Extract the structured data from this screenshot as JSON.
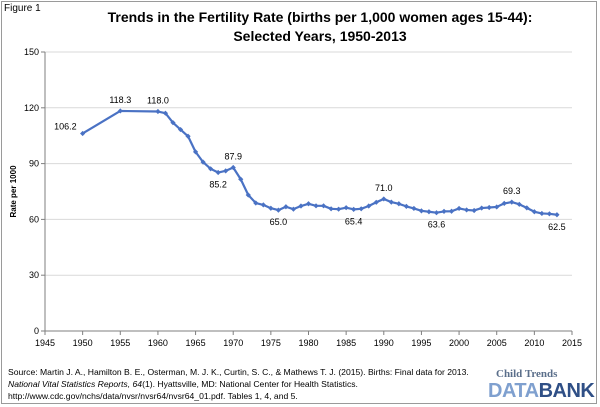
{
  "figure_label": "Figure 1",
  "title_line1": "Trends in the Fertility Rate (births per 1,000 women ages 15-44):",
  "title_line2": "Selected Years, 1950-2013",
  "source": {
    "line1": "Source: Martin J. A., Hamilton B. E., Osterman, M. J. K., Curtin, S. C., & Mathews T. J. (2015). Births: Final data for 2013.",
    "line2a": "National Vital Statistics Reports, 64",
    "line2b": "(1). Hyattsville, MD: National Center for Health Statistics.",
    "line3": "http://www.cdc.gov/nchs/data/nvsr/nvsr64/nvsr64_01.pdf.  Tables 1, 4, and 5."
  },
  "logo": {
    "top": "Child Trends",
    "data": "DATA",
    "bank": "BANK"
  },
  "colors": {
    "line": "#4a72c4",
    "marker": "#4a72c4",
    "grid": "#d9d9d9",
    "axis": "#7f7f7f"
  },
  "chart_data": {
    "type": "line",
    "title": "Trends in the Fertility Rate (births per 1,000 women ages 15-44): Selected Years, 1950-2013",
    "xlabel": "",
    "ylabel": "Rate per 1000",
    "xlim": [
      1945,
      2015
    ],
    "ylim": [
      0,
      150
    ],
    "xticks": [
      1945,
      1950,
      1955,
      1960,
      1965,
      1970,
      1975,
      1980,
      1985,
      1990,
      1995,
      2000,
      2005,
      2010,
      2015
    ],
    "yticks": [
      0,
      30,
      60,
      90,
      120,
      150
    ],
    "grid": "horizontal",
    "x": [
      1950,
      1955,
      1960,
      1961,
      1962,
      1963,
      1964,
      1965,
      1966,
      1967,
      1968,
      1969,
      1970,
      1971,
      1972,
      1973,
      1974,
      1975,
      1976,
      1977,
      1978,
      1979,
      1980,
      1981,
      1982,
      1983,
      1984,
      1985,
      1986,
      1987,
      1988,
      1989,
      1990,
      1991,
      1992,
      1993,
      1994,
      1995,
      1996,
      1997,
      1998,
      1999,
      2000,
      2001,
      2002,
      2003,
      2004,
      2005,
      2006,
      2007,
      2008,
      2009,
      2010,
      2011,
      2012,
      2013
    ],
    "series": [
      {
        "values": [
          106.2,
          118.3,
          118.0,
          117.1,
          112.0,
          108.3,
          104.7,
          96.3,
          90.8,
          87.2,
          85.2,
          86.1,
          87.9,
          81.6,
          73.1,
          68.8,
          67.8,
          66.0,
          65.0,
          66.8,
          65.5,
          67.2,
          68.4,
          67.3,
          67.3,
          65.7,
          65.5,
          66.3,
          65.4,
          65.7,
          67.2,
          69.2,
          71.0,
          69.3,
          68.4,
          67.0,
          65.9,
          64.6,
          64.1,
          63.6,
          64.3,
          64.4,
          65.9,
          65.1,
          64.8,
          66.1,
          66.4,
          66.7,
          68.6,
          69.3,
          68.1,
          66.2,
          64.1,
          63.2,
          63.0,
          62.5
        ]
      }
    ],
    "data_labels": [
      {
        "x": 1950,
        "value": "106.2",
        "pos": "left"
      },
      {
        "x": 1955,
        "value": "118.3",
        "pos": "above"
      },
      {
        "x": 1960,
        "value": "118.0",
        "pos": "above"
      },
      {
        "x": 1968,
        "value": "85.2",
        "pos": "below"
      },
      {
        "x": 1970,
        "value": "87.9",
        "pos": "above"
      },
      {
        "x": 1976,
        "value": "65.0",
        "pos": "below"
      },
      {
        "x": 1986,
        "value": "65.4",
        "pos": "below"
      },
      {
        "x": 1990,
        "value": "71.0",
        "pos": "above"
      },
      {
        "x": 1997,
        "value": "63.6",
        "pos": "below"
      },
      {
        "x": 2007,
        "value": "69.3",
        "pos": "above"
      },
      {
        "x": 2013,
        "value": "62.5",
        "pos": "below"
      }
    ]
  }
}
